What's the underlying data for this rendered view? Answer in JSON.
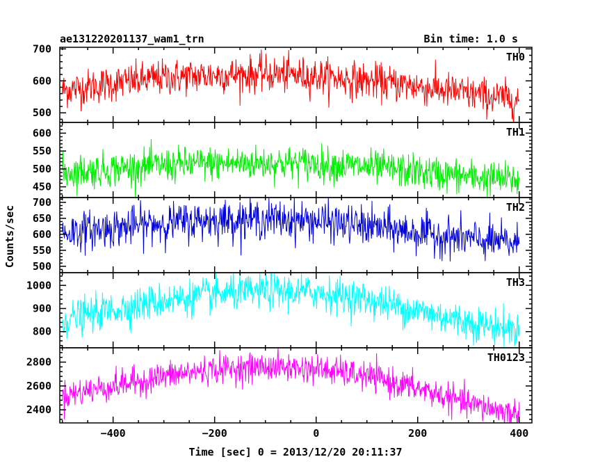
{
  "header": {
    "title": "ae131220201137_wam1_trn",
    "bin_time": "Bin time: 1.0 s"
  },
  "axes": {
    "ylabel": "Counts/sec",
    "xlabel": "Time [sec] 0 = 2013/12/20 20:11:37"
  },
  "chart_data": {
    "type": "line",
    "title": "ae131220201137_wam1_trn",
    "xlabel": "Time [sec] 0 = 2013/12/20 20:11:37",
    "ylabel": "Counts/sec",
    "xlim": [
      -505,
      425
    ],
    "x_ticks": [
      -400,
      -200,
      0,
      200,
      400
    ],
    "bin_time_s": 1.0,
    "grid": false,
    "panels": [
      {
        "name": "TH0",
        "color": "#ff0000",
        "ylim": [
          470,
          705
        ],
        "y_ticks": [
          500,
          600,
          700
        ],
        "x": [
          -500,
          -400,
          -300,
          -200,
          -100,
          0,
          100,
          200,
          300,
          400
        ],
        "values": [
          570,
          592,
          610,
          618,
          622,
          615,
          600,
          583,
          560,
          540
        ],
        "noise_sigma": 28
      },
      {
        "name": "TH1",
        "color": "#00ee00",
        "ylim": [
          420,
          630
        ],
        "y_ticks": [
          450,
          500,
          550,
          600
        ],
        "x": [
          -500,
          -400,
          -300,
          -200,
          -100,
          0,
          100,
          200,
          300,
          400
        ],
        "values": [
          490,
          500,
          510,
          515,
          517,
          515,
          505,
          492,
          478,
          468
        ],
        "noise_sigma": 24
      },
      {
        "name": "TH2",
        "color": "#0000dd",
        "ylim": [
          480,
          715
        ],
        "y_ticks": [
          500,
          550,
          600,
          650,
          700
        ],
        "x": [
          -500,
          -400,
          -300,
          -200,
          -100,
          0,
          100,
          200,
          300,
          400
        ],
        "values": [
          605,
          620,
          635,
          645,
          648,
          642,
          625,
          605,
          585,
          570
        ],
        "noise_sigma": 30
      },
      {
        "name": "TH3",
        "color": "#00ffff",
        "ylim": [
          730,
          1055
        ],
        "y_ticks": [
          800,
          900,
          1000
        ],
        "x": [
          -500,
          -400,
          -300,
          -200,
          -100,
          0,
          100,
          200,
          300,
          400
        ],
        "values": [
          850,
          895,
          935,
          960,
          975,
          970,
          940,
          890,
          840,
          805
        ],
        "noise_sigma": 38
      },
      {
        "name": "TH0123",
        "color": "#ff00ff",
        "ylim": [
          2290,
          2920
        ],
        "y_ticks": [
          2400,
          2600,
          2800
        ],
        "x": [
          -500,
          -400,
          -300,
          -200,
          -100,
          0,
          100,
          200,
          300,
          400
        ],
        "values": [
          2520,
          2600,
          2680,
          2740,
          2760,
          2745,
          2680,
          2580,
          2450,
          2360
        ],
        "noise_sigma": 60
      }
    ]
  }
}
